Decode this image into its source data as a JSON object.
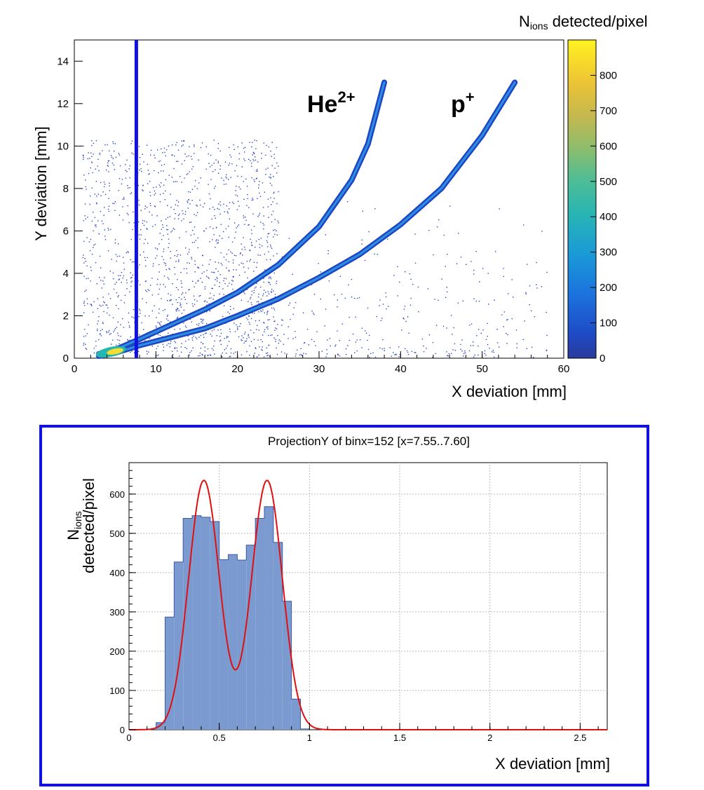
{
  "chart_data": [
    {
      "type": "heatmap",
      "xlabel": "X deviation [mm]",
      "ylabel": "Y deviation [mm]",
      "xlim": [
        0,
        60
      ],
      "ylim": [
        0,
        15
      ],
      "x_ticks": [
        "0",
        "10",
        "20",
        "30",
        "40",
        "50",
        "60"
      ],
      "y_ticks": [
        "0",
        "2",
        "4",
        "6",
        "8",
        "10",
        "12",
        "14"
      ],
      "colorbar": {
        "title_main": "N",
        "title_sub": "ions",
        "title_rest": " detected/pixel",
        "range": [
          0,
          900
        ],
        "ticks": [
          "0",
          "100",
          "200",
          "300",
          "400",
          "500",
          "600",
          "700",
          "800"
        ]
      },
      "cut_line": {
        "x": 7.6,
        "color": "#1010e0"
      },
      "annotations": [
        {
          "text": "He",
          "superscript": "2+"
        },
        {
          "text": "p",
          "superscript": "+"
        }
      ],
      "series": [
        {
          "name": "He²⁺",
          "points": [
            [
              3,
              0.2
            ],
            [
              5,
              0.4
            ],
            [
              8,
              0.9
            ],
            [
              12,
              1.6
            ],
            [
              16,
              2.3
            ],
            [
              20,
              3.1
            ],
            [
              25,
              4.4
            ],
            [
              30,
              6.2
            ],
            [
              34,
              8.4
            ],
            [
              36,
              10.1
            ],
            [
              38,
              13.0
            ]
          ]
        },
        {
          "name": "p⁺",
          "points": [
            [
              3,
              0.1
            ],
            [
              5,
              0.25
            ],
            [
              8,
              0.6
            ],
            [
              12,
              1.0
            ],
            [
              16,
              1.4
            ],
            [
              20,
              2.0
            ],
            [
              25,
              2.8
            ],
            [
              30,
              3.8
            ],
            [
              35,
              4.9
            ],
            [
              40,
              6.3
            ],
            [
              45,
              8.0
            ],
            [
              50,
              10.5
            ],
            [
              54,
              13.0
            ]
          ]
        }
      ]
    },
    {
      "type": "bar",
      "title": "ProjectionY of binx=152 [x=7.55..7.60]",
      "xlabel": "X deviation [mm]",
      "ylabel_main": "N",
      "ylabel_sub": "ions",
      "ylabel_rest": "detected/pixel",
      "xlim": [
        0,
        2.65
      ],
      "ylim": [
        0,
        680
      ],
      "x_ticks": [
        "0",
        "0.5",
        "1",
        "1.5",
        "2",
        "2.5"
      ],
      "y_ticks": [
        "0",
        "100",
        "200",
        "300",
        "400",
        "500",
        "600"
      ],
      "bin_width": 0.05,
      "bins_start": [
        0.15,
        0.2,
        0.25,
        0.3,
        0.35,
        0.4,
        0.45,
        0.5,
        0.55,
        0.6,
        0.65,
        0.7,
        0.75,
        0.8,
        0.85,
        0.9,
        0.95
      ],
      "values": [
        18,
        287,
        427,
        538,
        545,
        541,
        530,
        433,
        446,
        432,
        470,
        538,
        568,
        477,
        327,
        78,
        2
      ],
      "fit": {
        "name": "double gaussian",
        "color": "#e01010",
        "peaks": [
          {
            "amplitude": 635,
            "mean": 0.415,
            "sigma": 0.085
          },
          {
            "amplitude": 635,
            "mean": 0.765,
            "sigma": 0.085
          }
        ]
      },
      "fill_color": "#7b9bd0",
      "frame_color": "#1010e0"
    }
  ]
}
